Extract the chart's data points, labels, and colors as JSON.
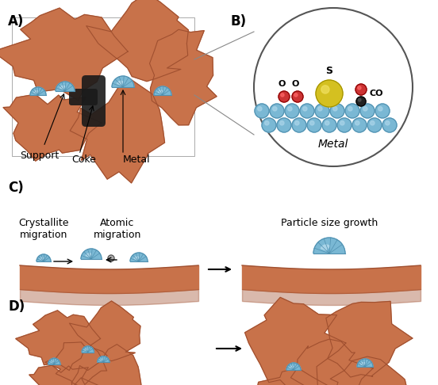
{
  "bg_color": "#ffffff",
  "support_color": "#c8724a",
  "support_dark": "#a05030",
  "metal_color": "#7ab8d4",
  "metal_dark": "#5090b0",
  "metal_highlight": "#aad4e8",
  "coke_color": "#1a1a1a",
  "sulfur_color": "#d4c020",
  "oxygen_color": "#cc3333",
  "carbon_color": "#222222",
  "label_A": "A)",
  "label_B": "B)",
  "label_C": "C)",
  "label_D": "D)",
  "text_metal": "Metal",
  "text_support": "Support",
  "text_coke": "Coke",
  "text_S": "S",
  "text_O1": "O",
  "text_O2": "O",
  "text_CO": "CO",
  "text_metal_B": "Metal",
  "text_cryst": "Crystallite\nmigration",
  "text_atomic": "Atomic\nmigration",
  "text_particle": "Particle size growth"
}
